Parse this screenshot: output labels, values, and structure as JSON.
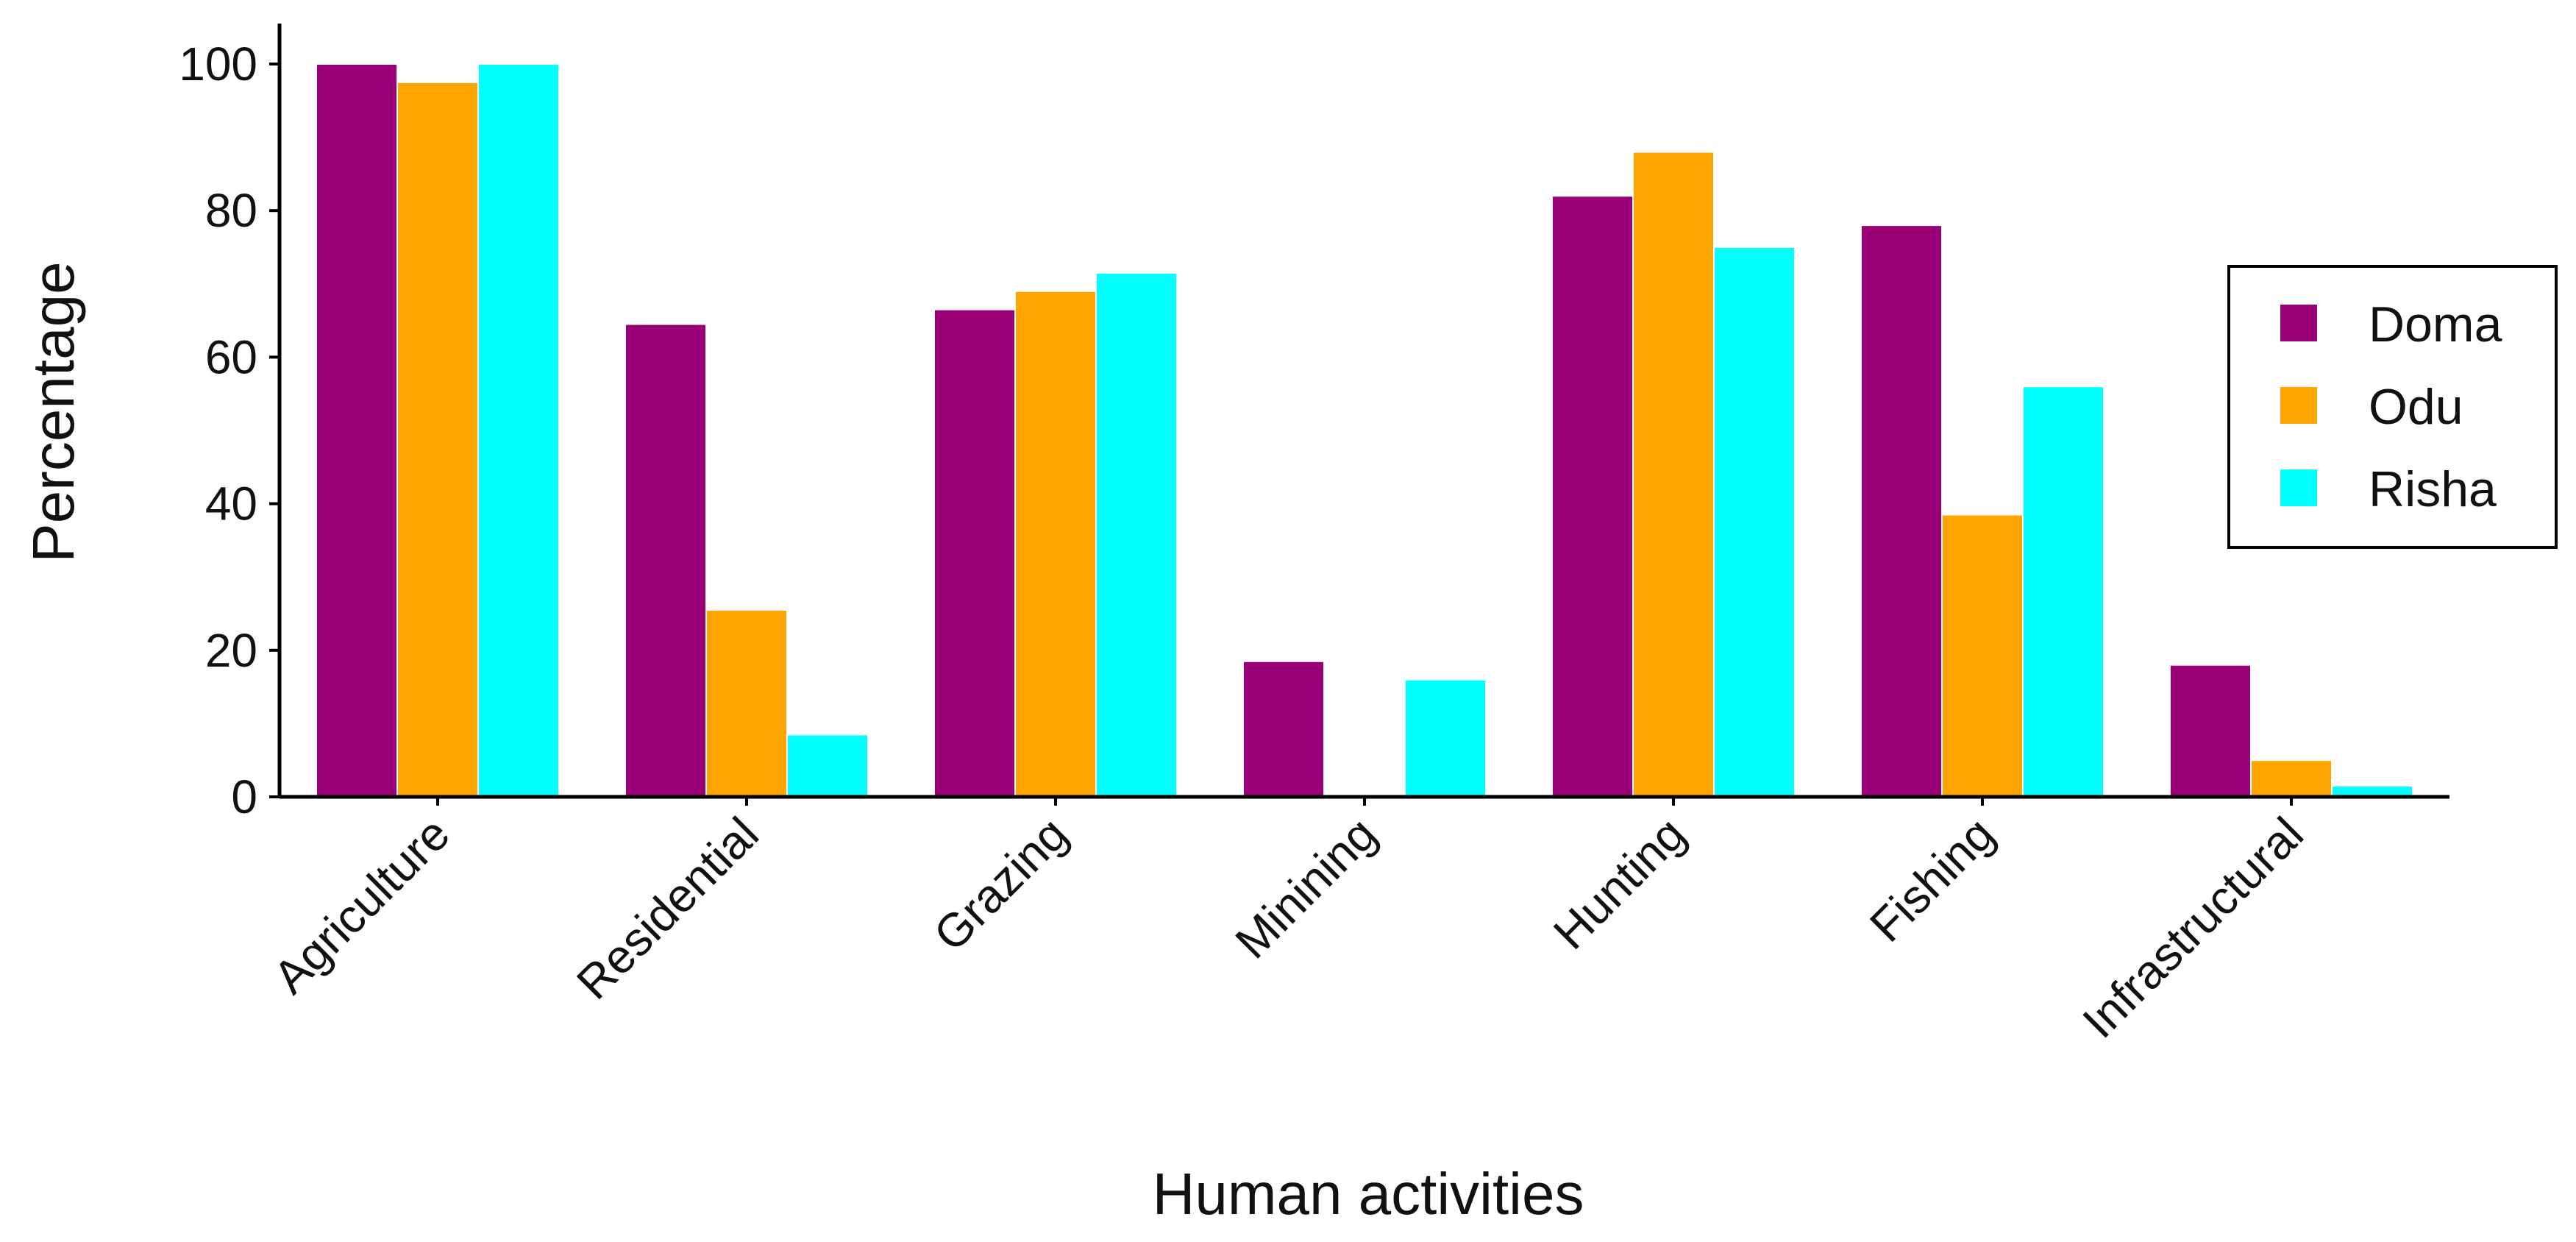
{
  "chart_data": {
    "type": "bar",
    "title": "",
    "xlabel": "Human activities",
    "ylabel": "Percentage",
    "categories": [
      "Agriculture",
      "Residential",
      "Grazing",
      "Minining",
      "Hunting",
      "Fishing",
      "Infrastructural"
    ],
    "series": [
      {
        "name": "Doma",
        "color": "#990077",
        "values": [
          100,
          64.5,
          66.5,
          18.5,
          82,
          78,
          18
        ]
      },
      {
        "name": "Odu",
        "color": "#FFA500",
        "values": [
          97.5,
          25.5,
          69,
          0,
          88,
          38.5,
          5
        ]
      },
      {
        "name": "Risha",
        "color": "#00FFFF",
        "values": [
          100,
          8.5,
          71.5,
          16,
          75,
          56,
          1.5
        ]
      }
    ],
    "ylim": [
      0,
      100
    ],
    "yticks": [
      0,
      20,
      40,
      60,
      80,
      100
    ],
    "grid": false,
    "legend": {
      "position": "right",
      "entries": [
        "Doma",
        "Odu",
        "Risha"
      ]
    }
  }
}
